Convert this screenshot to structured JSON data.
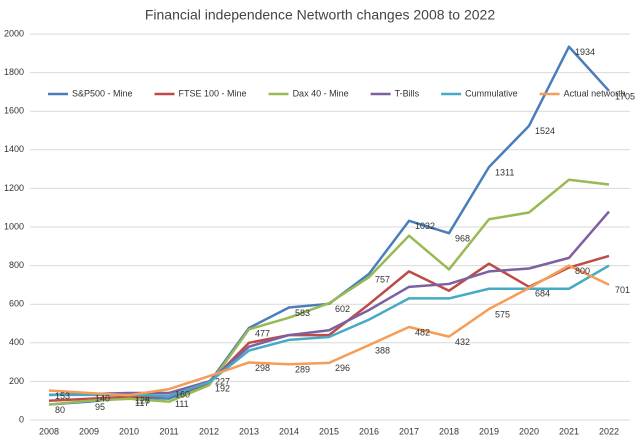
{
  "chart_data": {
    "type": "line",
    "title": "Financial independence Networth changes 2008 to 2022",
    "categories": [
      "2008",
      "2009",
      "2010",
      "2011",
      "2012",
      "2013",
      "2014",
      "2015",
      "2016",
      "2017",
      "2018",
      "2019",
      "2020",
      "2021",
      "2022"
    ],
    "series": [
      {
        "name": "S&P500 - Mine",
        "color": "#4a7ebb",
        "show_labels": true,
        "values": [
          80,
          95,
          117,
          111,
          192,
          477,
          583,
          602,
          757,
          1032,
          968,
          1311,
          1524,
          1934,
          1705
        ]
      },
      {
        "name": "FTSE 100 - Mine",
        "color": "#be4b48",
        "values": [
          100,
          110,
          120,
          125,
          190,
          400,
          440,
          440,
          600,
          770,
          670,
          810,
          690,
          790,
          850
        ]
      },
      {
        "name": "Dax 40 - Mine",
        "color": "#98b954",
        "values": [
          80,
          100,
          110,
          95,
          180,
          470,
          530,
          605,
          740,
          955,
          780,
          1040,
          1075,
          1245,
          1220
        ]
      },
      {
        "name": "T-Bills",
        "color": "#7d60a0",
        "values": [
          130,
          135,
          140,
          140,
          200,
          380,
          440,
          465,
          570,
          690,
          705,
          770,
          785,
          840,
          1080
        ]
      },
      {
        "name": "Cummulative",
        "color": "#46aac5",
        "values": [
          130,
          130,
          130,
          125,
          195,
          360,
          415,
          430,
          520,
          630,
          630,
          680,
          680,
          680,
          800
        ]
      },
      {
        "name": "Actual networth",
        "color": "#f59d56",
        "show_labels": true,
        "values": [
          153,
          140,
          128,
          160,
          227,
          298,
          289,
          296,
          388,
          482,
          432,
          575,
          684,
          800,
          701
        ]
      }
    ],
    "ylim": [
      0,
      2000
    ],
    "yticks": [
      0,
      200,
      400,
      600,
      800,
      1000,
      1200,
      1400,
      1600,
      1800,
      2000
    ],
    "grid": true,
    "legend": "top"
  }
}
